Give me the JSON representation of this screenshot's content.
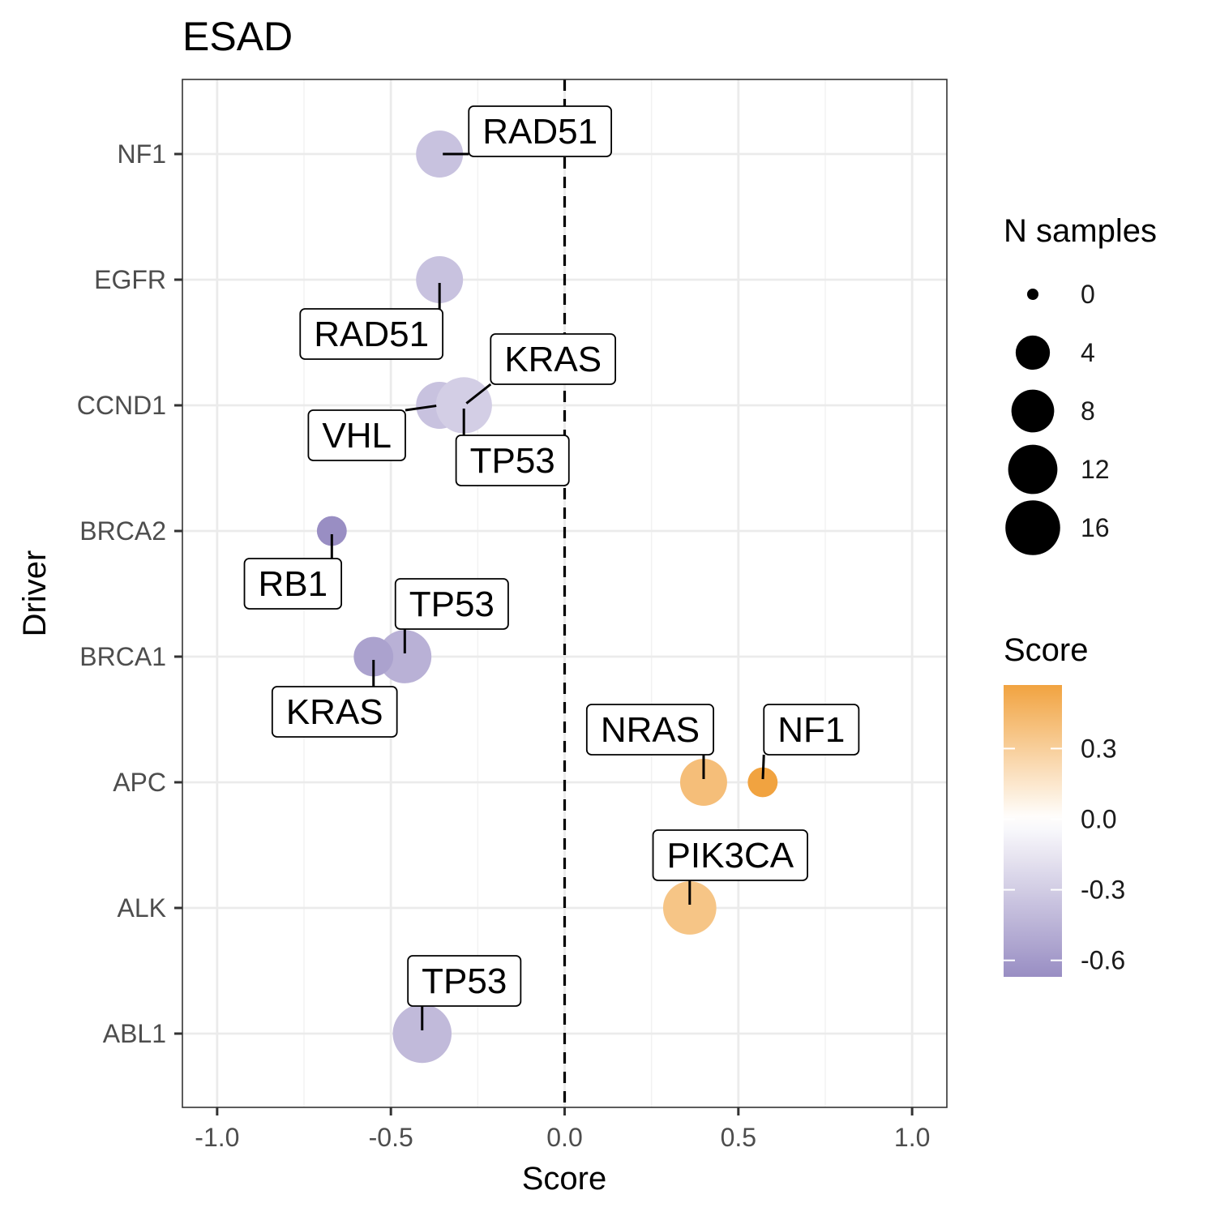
{
  "chart_data": {
    "type": "scatter",
    "title": "ESAD",
    "xlabel": "Score",
    "ylabel": "Driver",
    "xlim": [
      -1.1,
      1.1
    ],
    "x_ticks": [
      -1.0,
      -0.5,
      0.0,
      0.5,
      1.0
    ],
    "x_tick_labels": [
      "-1.0",
      "-0.5",
      "0.0",
      "0.5",
      "1.0"
    ],
    "categories": [
      "ABL1",
      "ALK",
      "APC",
      "BRCA1",
      "BRCA2",
      "CCND1",
      "EGFR",
      "NF1"
    ],
    "points": [
      {
        "driver": "NF1",
        "partner": "RAD51",
        "score": -0.36,
        "n": 6
      },
      {
        "driver": "EGFR",
        "partner": "RAD51",
        "score": -0.36,
        "n": 6
      },
      {
        "driver": "CCND1",
        "partner": "KRAS",
        "score": -0.29,
        "n": 9
      },
      {
        "driver": "CCND1",
        "partner": "VHL",
        "score": -0.36,
        "n": 6
      },
      {
        "driver": "CCND1",
        "partner": "TP53",
        "score": -0.29,
        "n": 9
      },
      {
        "driver": "BRCA2",
        "partner": "RB1",
        "score": -0.67,
        "n": 2
      },
      {
        "driver": "BRCA1",
        "partner": "TP53",
        "score": -0.46,
        "n": 8
      },
      {
        "driver": "BRCA1",
        "partner": "KRAS",
        "score": -0.55,
        "n": 4
      },
      {
        "driver": "APC",
        "partner": "NRAS",
        "score": 0.4,
        "n": 6
      },
      {
        "driver": "APC",
        "partner": "NF1",
        "score": 0.57,
        "n": 2
      },
      {
        "driver": "ALK",
        "partner": "PIK3CA",
        "score": 0.36,
        "n": 8
      },
      {
        "driver": "ABL1",
        "partner": "TP53",
        "score": -0.41,
        "n": 10
      }
    ],
    "vline": {
      "x": 0,
      "style": "dashed"
    },
    "legend_size": {
      "title": "N samples",
      "values": [
        0,
        4,
        8,
        12,
        16
      ],
      "labels": [
        "0",
        "4",
        "8",
        "12",
        "16"
      ]
    },
    "legend_color": {
      "title": "Score",
      "limits": [
        -0.67,
        0.57
      ],
      "breaks": [
        0.3,
        0.0,
        -0.3,
        -0.6
      ],
      "labels": [
        "0.3",
        "0.0",
        "-0.3",
        "-0.6"
      ],
      "low_color": "#998ec3",
      "mid_color": "#ffffff",
      "high_color": "#f1a340"
    }
  }
}
